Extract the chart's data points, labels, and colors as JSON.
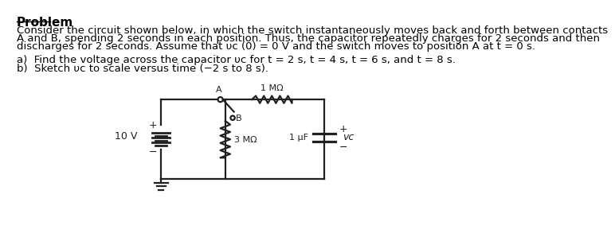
{
  "title": "Problem",
  "bg_color": "#ffffff",
  "text_color": "#000000",
  "circuit_color": "#231f20",
  "font_size_title": 11,
  "font_size_body": 9.5,
  "para_lines": [
    "Consider the circuit shown below, in which the switch instantaneously moves back and forth between contacts",
    "A and B, spending 2 seconds in each position. Thus, the capacitor repeatedly charges for 2 seconds and then",
    "discharges for 2 seconds. Assume that υᴄ (0) = 0 V and the switch moves to position A at t = 0 s."
  ],
  "part_a": "a)  Find the voltage across the capacitor υᴄ for t = 2 s, t = 4 s, t = 6 s, and t = 8 s.",
  "part_b": "b)  Sketch υᴄ to scale versus time (−2 s to 8 s).",
  "resistor1_label": "1 MΩ",
  "resistor2_label": "3 MΩ",
  "capacitor_label": "1 μF",
  "voltage_label": "10 V",
  "vc_label": "vᴄ",
  "label_A": "A",
  "label_B": "B"
}
